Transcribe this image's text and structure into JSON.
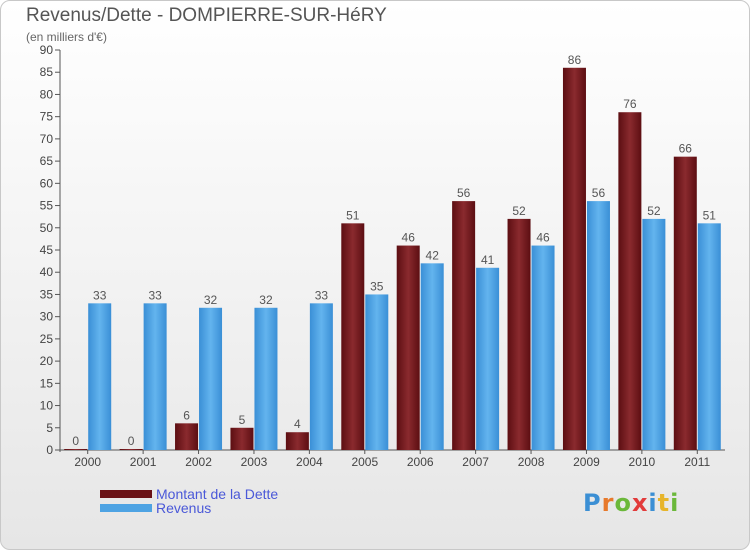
{
  "title": "Revenus/Dette - DOMPIERRE-SUR-HéRY",
  "subtitle": "(en milliers d'€)",
  "brand": "Proxiti",
  "chart_data": {
    "type": "bar",
    "categories": [
      "2000",
      "2001",
      "2002",
      "2003",
      "2004",
      "2005",
      "2006",
      "2007",
      "2008",
      "2009",
      "2010",
      "2011"
    ],
    "series": [
      {
        "name": "Montant de la Dette",
        "color": "#7a1a1e",
        "values": [
          0,
          0,
          6,
          5,
          4,
          51,
          46,
          56,
          52,
          86,
          76,
          66
        ]
      },
      {
        "name": "Revenus",
        "color": "#4ea3e3",
        "values": [
          33,
          33,
          32,
          32,
          33,
          35,
          42,
          41,
          46,
          56,
          52,
          51
        ]
      }
    ],
    "ylim": [
      0,
      90
    ],
    "ytick_step": 5,
    "grid": false,
    "legend_position": "bottom-left"
  }
}
